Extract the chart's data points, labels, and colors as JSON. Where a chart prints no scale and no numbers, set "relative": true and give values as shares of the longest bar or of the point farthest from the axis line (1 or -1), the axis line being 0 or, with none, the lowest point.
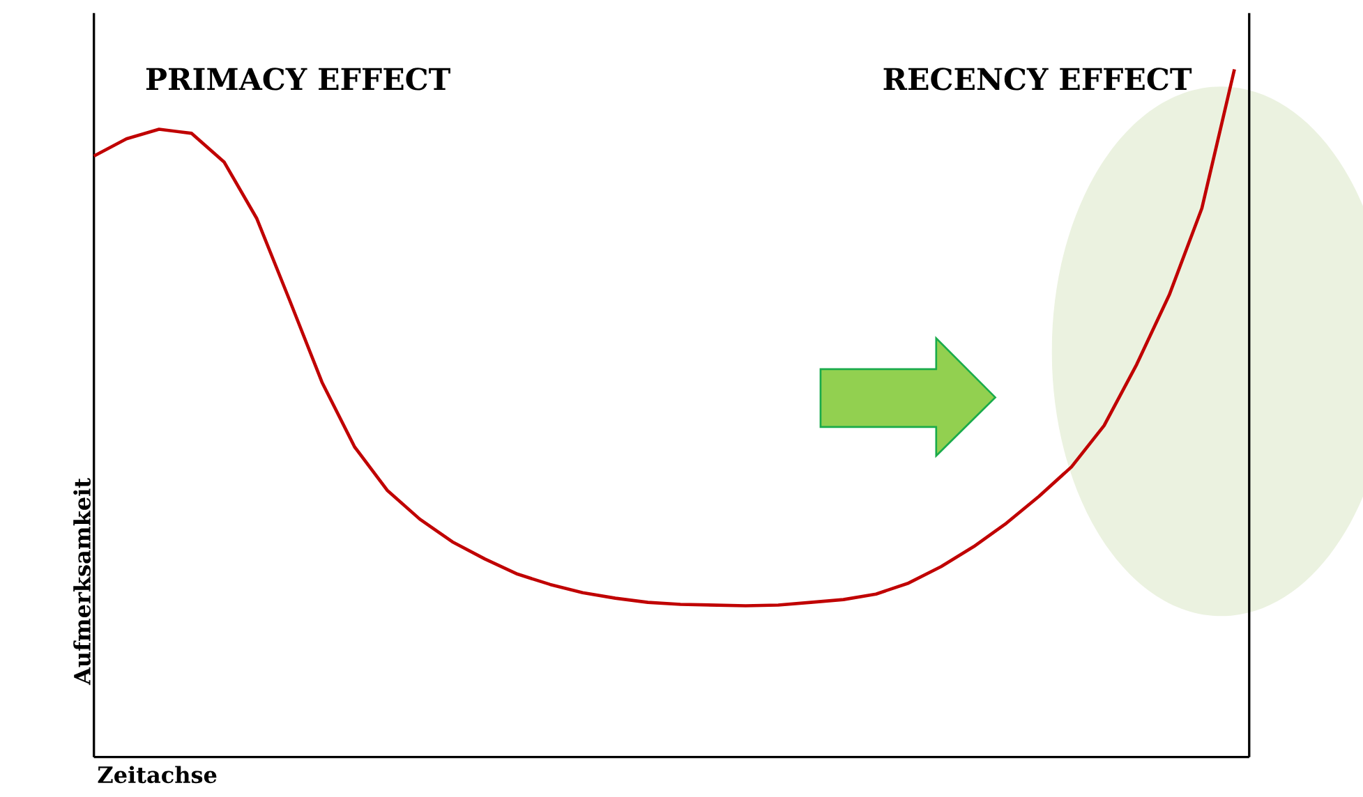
{
  "chart_data": {
    "type": "line",
    "relative": true,
    "xlabel": "Zeitachse",
    "ylabel": "Aufmerksamkeit",
    "color": "#c00000",
    "annotations": [
      "PRIMACY EFFECT",
      "RECENCY EFFECT"
    ],
    "categories": [
      null,
      null,
      null,
      null,
      null,
      null,
      null,
      null,
      null,
      null,
      null,
      null,
      null,
      null,
      null,
      null,
      null,
      null,
      null,
      null,
      null,
      null,
      null,
      null,
      null,
      null,
      null,
      null,
      null,
      null,
      null,
      null,
      null,
      null,
      null,
      null
    ],
    "values": [
      0.874,
      0.899,
      0.913,
      0.907,
      0.865,
      0.783,
      0.665,
      0.545,
      0.451,
      0.388,
      0.346,
      0.313,
      0.288,
      0.266,
      0.251,
      0.239,
      0.231,
      0.225,
      0.222,
      0.221,
      0.22,
      0.221,
      0.225,
      0.229,
      0.237,
      0.253,
      0.277,
      0.306,
      0.34,
      0.379,
      0.422,
      0.482,
      0.571,
      0.672,
      0.798,
      1.0
    ]
  }
}
